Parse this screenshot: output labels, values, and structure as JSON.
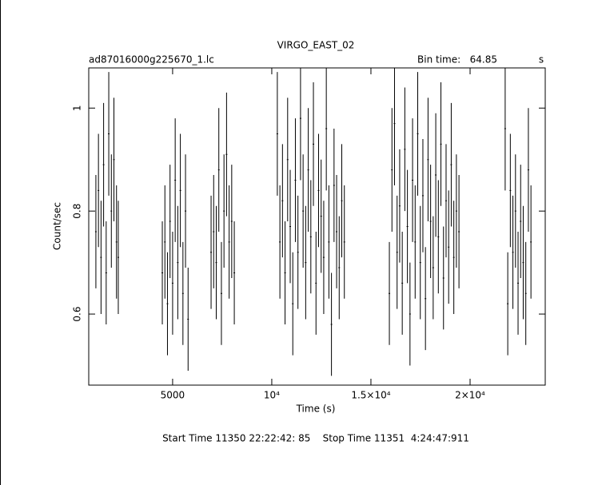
{
  "chart_data": {
    "type": "errorbar",
    "title": "VIRGO_EAST_02",
    "file_label": "ad87016000g225670_1.lc",
    "bin_time_label": "Bin time:",
    "bin_time": 64.85,
    "bin_time_unit": "s",
    "xlabel": "Time (s)",
    "ylabel": "Count/sec",
    "footer": "Start Time 11350 22:22:42: 85    Stop Time 11351  4:24:47:911",
    "color": "#000000",
    "xlim": [
      770,
      23790
    ],
    "ylim": [
      0.462,
      1.078
    ],
    "xticks": [
      5000,
      {
        "value": 10000,
        "label": "10⁴"
      },
      {
        "value": 15000,
        "label": "1.5×10⁴"
      },
      {
        "value": 20000,
        "label": "2×10⁴"
      }
    ],
    "yticks": [
      0.6,
      0.8,
      1
    ],
    "x": [
      1130,
      1260,
      1390,
      1520,
      1650,
      1780,
      1910,
      2040,
      2170,
      2260,
      4480,
      4610,
      4740,
      4870,
      5000,
      5130,
      5260,
      5390,
      5520,
      5650,
      5780,
      6940,
      7070,
      7200,
      7330,
      7460,
      7590,
      7720,
      7850,
      7980,
      8110,
      10280,
      10410,
      10540,
      10670,
      10800,
      10930,
      11060,
      11190,
      11320,
      11450,
      11580,
      11710,
      11840,
      11970,
      12100,
      12230,
      12360,
      12490,
      12620,
      12750,
      12880,
      13010,
      13140,
      13270,
      13400,
      13530,
      13660,
      15930,
      16060,
      16190,
      16320,
      16450,
      16580,
      16710,
      16840,
      16970,
      17100,
      17230,
      17360,
      17490,
      17620,
      17750,
      17880,
      18010,
      18140,
      18270,
      18400,
      18530,
      18660,
      18790,
      18920,
      19050,
      19180,
      19310,
      19440,
      21770,
      21900,
      22030,
      22160,
      22290,
      22420,
      22550,
      22680,
      22810,
      22940,
      23070
    ],
    "values": [
      0.76,
      0.84,
      0.71,
      0.89,
      0.68,
      0.95,
      0.8,
      0.9,
      0.74,
      0.71,
      0.68,
      0.74,
      0.62,
      0.78,
      0.66,
      0.86,
      0.7,
      0.84,
      0.64,
      0.8,
      0.59,
      0.72,
      0.76,
      0.7,
      0.88,
      0.64,
      0.8,
      0.91,
      0.74,
      0.78,
      0.68,
      0.95,
      0.74,
      0.82,
      0.68,
      0.9,
      0.77,
      0.62,
      0.86,
      0.72,
      0.98,
      0.8,
      0.7,
      0.88,
      0.75,
      0.93,
      0.66,
      0.84,
      0.79,
      0.71,
      0.96,
      0.74,
      0.58,
      0.85,
      0.76,
      0.69,
      0.82,
      0.74,
      0.64,
      0.88,
      0.97,
      0.72,
      0.81,
      0.66,
      0.92,
      0.77,
      0.6,
      0.86,
      0.74,
      0.95,
      0.7,
      0.83,
      0.63,
      0.9,
      0.78,
      0.69,
      0.87,
      0.75,
      0.93,
      0.67,
      0.82,
      0.73,
      0.89,
      0.71,
      0.8,
      0.76,
      0.96,
      0.62,
      0.84,
      0.72,
      0.8,
      0.66,
      0.78,
      0.7,
      0.64,
      0.88,
      0.74
    ],
    "errors": [
      0.11,
      0.11,
      0.11,
      0.12,
      0.1,
      0.12,
      0.11,
      0.12,
      0.11,
      0.11,
      0.1,
      0.11,
      0.1,
      0.11,
      0.1,
      0.12,
      0.11,
      0.11,
      0.1,
      0.11,
      0.1,
      0.11,
      0.11,
      0.11,
      0.12,
      0.1,
      0.11,
      0.12,
      0.11,
      0.11,
      0.1,
      0.12,
      0.11,
      0.11,
      0.1,
      0.12,
      0.11,
      0.1,
      0.12,
      0.11,
      0.12,
      0.11,
      0.11,
      0.12,
      0.11,
      0.12,
      0.1,
      0.11,
      0.11,
      0.11,
      0.12,
      0.11,
      0.1,
      0.11,
      0.11,
      0.1,
      0.11,
      0.11,
      0.1,
      0.12,
      0.12,
      0.11,
      0.11,
      0.1,
      0.12,
      0.11,
      0.1,
      0.12,
      0.11,
      0.12,
      0.11,
      0.11,
      0.1,
      0.12,
      0.11,
      0.1,
      0.12,
      0.11,
      0.12,
      0.1,
      0.11,
      0.11,
      0.12,
      0.11,
      0.11,
      0.11,
      0.12,
      0.1,
      0.11,
      0.11,
      0.11,
      0.1,
      0.11,
      0.11,
      0.1,
      0.12,
      0.11
    ]
  }
}
